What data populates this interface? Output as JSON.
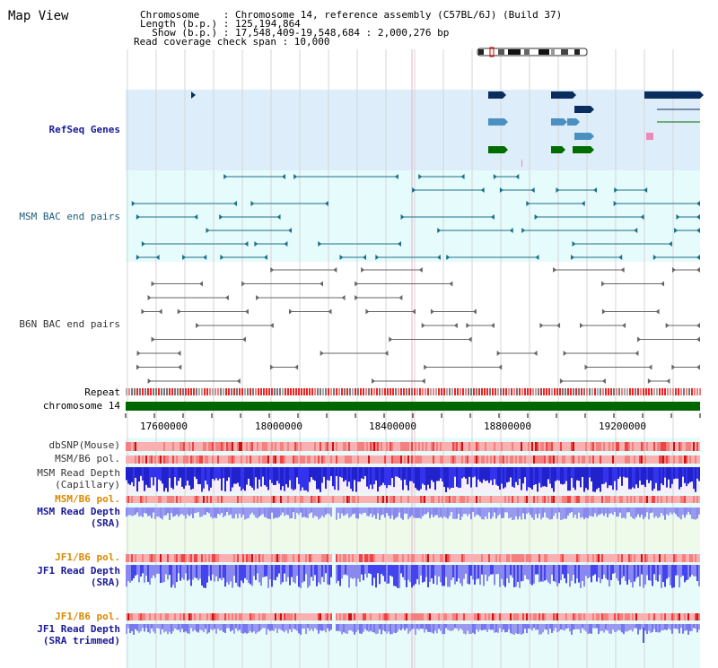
{
  "title": "Map View",
  "info": {
    "chromosome": "Chromosome    : Chromosome 14, reference assembly (C57BL/6J) (Build 37)",
    "length": "Length (b.p.) : 125,194,864",
    "show": "  Show (b.p.) : 17,548,409-19,548,684 : 2,000,276 bp",
    "coverage": "Read coverage check span : 10,000"
  },
  "tracks": {
    "refseq": "RefSeq Genes",
    "msm_bac": "MSM BAC end pairs",
    "b6n_bac": "B6N BAC end pairs",
    "repeat": "Repeat",
    "chromosome": "chromosome 14",
    "dbsnp": "dbSNP(Mouse)",
    "msm_b6_pol_1": "MSM/B6 pol.",
    "msm_read_depth_cap_1": "MSM Read Depth",
    "msm_read_depth_cap_2": "(Capillary)",
    "msm_b6_pol_2": "MSM/B6 pol.",
    "msm_read_depth_sra_1": "MSM Read Depth",
    "msm_read_depth_sra_2": "(SRA)",
    "jf1_b6_pol_1": "JF1/B6 pol.",
    "jf1_read_depth_1": "JF1 Read Depth",
    "jf1_read_depth_2": "(SRA)",
    "jf1_b6_pol_2": "JF1/B6 pol.",
    "jf1_read_depth_trim_1": "JF1 Read Depth",
    "jf1_read_depth_trim_2": "(SRA trimmed)"
  },
  "axis_ticks": [
    "17600000",
    "18000000",
    "18400000",
    "18800000",
    "19200000"
  ],
  "colors": {
    "refseq_bg": "#ddeefa",
    "msm_bac_bg": "#e6fbfb",
    "lower_bg": "#e8fbfb",
    "chromosome_bar": "#006600",
    "gene_navy": "#0b2d5e",
    "gene_blue": "#4a90c0",
    "gene_green": "#006d00",
    "bac_teal": "#1b6f8a",
    "bac_gray": "#666666",
    "depth_blue": "#3333ee",
    "depth_light": "#8888ee"
  }
}
